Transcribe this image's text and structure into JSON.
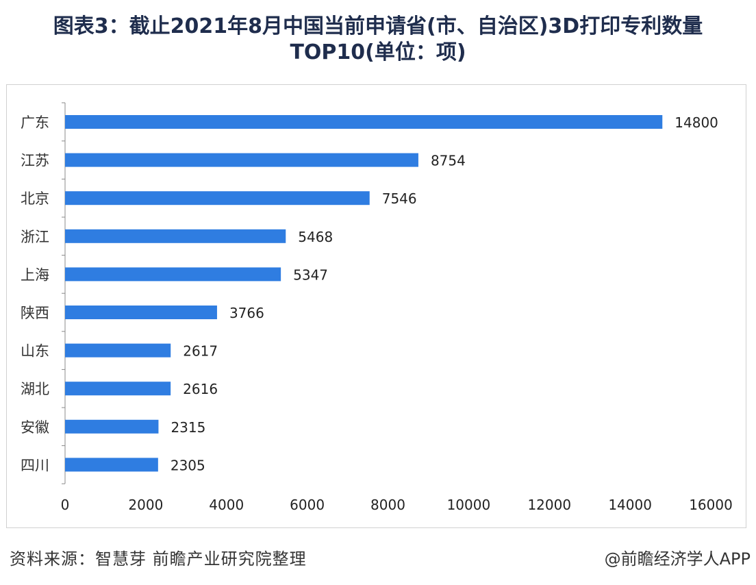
{
  "header": {
    "title_line1": "图表3：截止2021年8月中国当前申请省(市、自治区)3D打印专利数量",
    "title_line2": "TOP10(单位：项)"
  },
  "chart_data": {
    "type": "bar",
    "orientation": "horizontal",
    "categories": [
      "广东",
      "江苏",
      "北京",
      "浙江",
      "上海",
      "陕西",
      "山东",
      "湖北",
      "安徽",
      "四川"
    ],
    "values": [
      14800,
      8754,
      7546,
      5468,
      5347,
      3766,
      2617,
      2616,
      2315,
      2305
    ],
    "xlim": [
      0,
      16000
    ],
    "xticks": [
      0,
      2000,
      4000,
      6000,
      8000,
      10000,
      12000,
      14000,
      16000
    ],
    "grid": false,
    "data_labels": true,
    "bar_color": "#2f7de1"
  },
  "footer": {
    "source": "资料来源：智慧芽 前瞻产业研究院整理",
    "credit": "@前瞻经济学人APP"
  }
}
